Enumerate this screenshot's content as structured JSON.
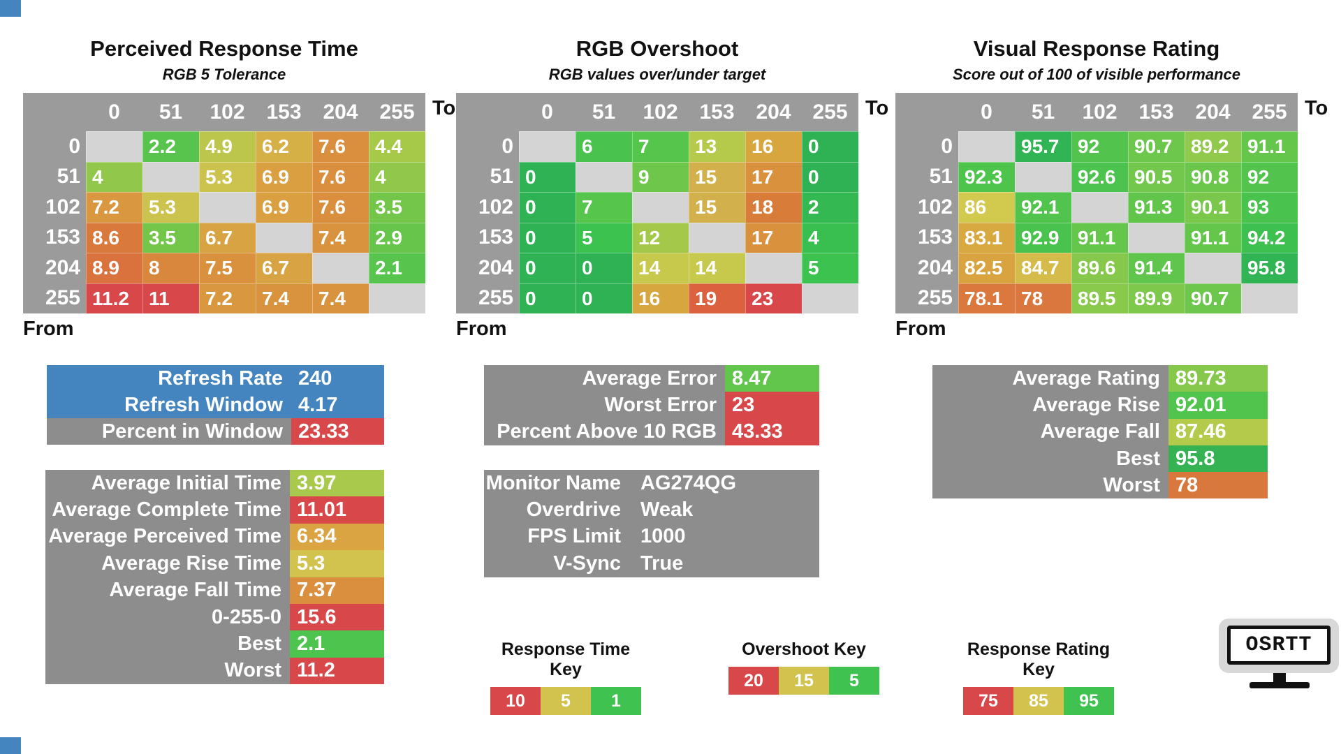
{
  "colors": {
    "header_gray": "#9b9b9b",
    "block_gray": "#8d8d8d",
    "empty_cell": "#d4d4d4",
    "blue": "#4484bf",
    "red": "#d8484b",
    "yellow": "#d2c24e",
    "green": "#3fc24f",
    "dark_green": "#2fb254"
  },
  "colormaps": {
    "time": [
      [
        1,
        "#3ec24e"
      ],
      [
        3.5,
        "#74c64b"
      ],
      [
        4.5,
        "#adc94a"
      ],
      [
        5.5,
        "#d2c24e"
      ],
      [
        7,
        "#d99c40"
      ],
      [
        8.5,
        "#d97c3a"
      ],
      [
        10.5,
        "#d8484b"
      ]
    ],
    "overshoot": [
      [
        0,
        "#2eb254"
      ],
      [
        5,
        "#3cc24e"
      ],
      [
        9,
        "#6ec74a"
      ],
      [
        12,
        "#a4c94a"
      ],
      [
        14,
        "#c6c94b"
      ],
      [
        15,
        "#d2b04b"
      ],
      [
        16,
        "#d8a63f"
      ],
      [
        17,
        "#d9913d"
      ],
      [
        18,
        "#d87d39"
      ],
      [
        19,
        "#dc613f"
      ],
      [
        21,
        "#d8484b"
      ]
    ],
    "rating": [
      [
        75,
        "#d8484b"
      ],
      [
        77,
        "#dc6940"
      ],
      [
        79,
        "#d8853c"
      ],
      [
        83,
        "#d9a841"
      ],
      [
        86,
        "#d2c94f"
      ],
      [
        88,
        "#aeca4b"
      ],
      [
        90,
        "#7cc84b"
      ],
      [
        92,
        "#52c44d"
      ],
      [
        94,
        "#3fc24f"
      ],
      [
        96,
        "#2fb254"
      ]
    ]
  },
  "chart_data": [
    {
      "type": "heatmap",
      "colormap": "time",
      "title": "Perceived Response Time",
      "subtitle": "RGB 5 Tolerance",
      "to_label": "To",
      "from_label": "From",
      "categories": [
        "0",
        "51",
        "102",
        "153",
        "204",
        "255"
      ],
      "values": [
        [
          null,
          "2.2",
          "4.9",
          "6.2",
          "7.6",
          "4.4"
        ],
        [
          "4",
          null,
          "5.3",
          "6.9",
          "7.6",
          "4"
        ],
        [
          "7.2",
          "5.3",
          null,
          "6.9",
          "7.6",
          "3.5"
        ],
        [
          "8.6",
          "3.5",
          "6.7",
          null,
          "7.4",
          "2.9"
        ],
        [
          "8.9",
          "8",
          "7.5",
          "6.7",
          null,
          "2.1"
        ],
        [
          "11.2",
          "11",
          "7.2",
          "7.4",
          "7.4",
          null
        ]
      ]
    },
    {
      "type": "heatmap",
      "colormap": "overshoot",
      "title": "RGB Overshoot",
      "subtitle": "RGB values over/under target",
      "to_label": "To",
      "from_label": "From",
      "categories": [
        "0",
        "51",
        "102",
        "153",
        "204",
        "255"
      ],
      "values": [
        [
          null,
          "6",
          "7",
          "13",
          "16",
          "0"
        ],
        [
          "0",
          null,
          "9",
          "15",
          "17",
          "0"
        ],
        [
          "0",
          "7",
          null,
          "15",
          "18",
          "2"
        ],
        [
          "0",
          "5",
          "12",
          null,
          "17",
          "4"
        ],
        [
          "0",
          "0",
          "14",
          "14",
          null,
          "5"
        ],
        [
          "0",
          "0",
          "16",
          "19",
          "23",
          null
        ]
      ]
    },
    {
      "type": "heatmap",
      "colormap": "rating",
      "title": "Visual Response Rating",
      "subtitle": "Score out of 100 of visible performance",
      "to_label": "To",
      "from_label": "From",
      "categories": [
        "0",
        "51",
        "102",
        "153",
        "204",
        "255"
      ],
      "values": [
        [
          null,
          "95.7",
          "92",
          "90.7",
          "89.2",
          "91.1"
        ],
        [
          "92.3",
          null,
          "92.6",
          "90.5",
          "90.8",
          "92"
        ],
        [
          "86",
          "92.1",
          null,
          "91.3",
          "90.1",
          "93"
        ],
        [
          "83.1",
          "92.9",
          "91.1",
          null,
          "91.1",
          "94.2"
        ],
        [
          "82.5",
          "84.7",
          "89.6",
          "91.4",
          null,
          "95.8"
        ],
        [
          "78.1",
          "78",
          "89.5",
          "89.9",
          "90.7",
          null
        ]
      ]
    }
  ],
  "stats": {
    "refresh": {
      "rows": [
        {
          "label": "Refresh Rate",
          "value": "240",
          "row_bg": "#4484bf"
        },
        {
          "label": "Refresh Window",
          "value": "4.17",
          "row_bg": "#4484bf"
        },
        {
          "label": "Percent in Window",
          "value": "23.33",
          "value_bg": "#d8484b"
        }
      ]
    },
    "response_time": {
      "rows": [
        {
          "label": "Average Initial Time",
          "value": "3.97",
          "value_bg": "#a8c94b"
        },
        {
          "label": "Average Complete Time",
          "value": "11.01",
          "value_bg": "#d8484b"
        },
        {
          "label": "Average Perceived Time",
          "value": "6.34",
          "value_bg": "#d9a441"
        },
        {
          "label": "Average Rise Time",
          "value": "5.3",
          "value_bg": "#d2c24e"
        },
        {
          "label": "Average Fall Time",
          "value": "7.37",
          "value_bg": "#d98f3e"
        },
        {
          "label": "0-255-0",
          "value": "15.6",
          "value_bg": "#d8484b"
        },
        {
          "label": "Best",
          "value": "2.1",
          "value_bg": "#4cc44d"
        },
        {
          "label": "Worst",
          "value": "11.2",
          "value_bg": "#d8484b"
        }
      ]
    },
    "overshoot": {
      "rows": [
        {
          "label": "Average Error",
          "value": "8.47",
          "value_bg": "#62c64c"
        },
        {
          "label": "Worst Error",
          "value": "23",
          "value_bg": "#d8484b"
        },
        {
          "label": "Percent Above 10 RGB",
          "value": "43.33",
          "value_bg": "#d8484b"
        }
      ]
    },
    "monitor": {
      "rows": [
        {
          "label": "Monitor Name",
          "value": "AG274QG"
        },
        {
          "label": "Overdrive",
          "value": "Weak"
        },
        {
          "label": "FPS Limit",
          "value": "1000"
        },
        {
          "label": "V-Sync",
          "value": "True"
        }
      ]
    },
    "rating": {
      "rows": [
        {
          "label": "Average Rating",
          "value": "89.73",
          "value_bg": "#85c84b"
        },
        {
          "label": "Average Rise",
          "value": "92.01",
          "value_bg": "#50c44d"
        },
        {
          "label": "Average Fall",
          "value": "87.46",
          "value_bg": "#b3ca4b"
        },
        {
          "label": "Best",
          "value": "95.8",
          "value_bg": "#35b353"
        },
        {
          "label": "Worst",
          "value": "78",
          "value_bg": "#d8783c"
        }
      ]
    }
  },
  "keys": [
    {
      "title": "Response Time Key",
      "cells": [
        {
          "label": "10",
          "color": "#d8484b"
        },
        {
          "label": "5",
          "color": "#d2c24e"
        },
        {
          "label": "1",
          "color": "#3fc24f"
        }
      ]
    },
    {
      "title": "Overshoot Key",
      "cells": [
        {
          "label": "20",
          "color": "#d8484b"
        },
        {
          "label": "15",
          "color": "#d2c24e"
        },
        {
          "label": "5",
          "color": "#3fc24f"
        }
      ]
    },
    {
      "title": "Response Rating Key",
      "cells": [
        {
          "label": "75",
          "color": "#d8484b"
        },
        {
          "label": "85",
          "color": "#d2c24e"
        },
        {
          "label": "95",
          "color": "#3fc24f"
        }
      ]
    }
  ],
  "logo": {
    "text": "OSRTT"
  }
}
